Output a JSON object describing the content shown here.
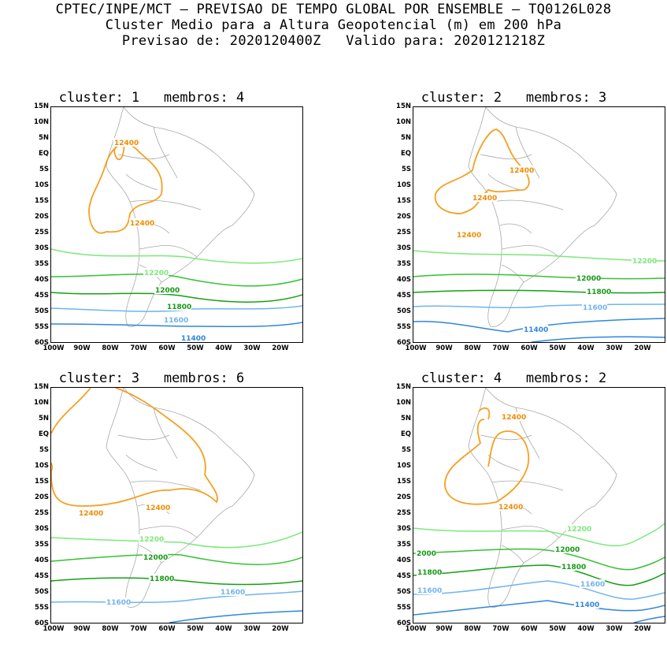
{
  "header": {
    "line1": "CPTEC/INPE/MCT – PREVISAO DE TEMPO GLOBAL POR ENSEMBLE – TQ0126L028",
    "line2": "Cluster Medio para a Altura Geopotencial (m) em 200 hPa",
    "line3": "Previsao de: 2020120400Z   Valido para: 2020121218Z"
  },
  "axes": {
    "y_ticks": [
      "15N",
      "10N",
      "5N",
      "EQ",
      "5S",
      "10S",
      "15S",
      "20S",
      "25S",
      "30S",
      "35S",
      "40S",
      "45S",
      "50S",
      "55S",
      "60S"
    ],
    "x_ticks": [
      "100W",
      "90W",
      "80W",
      "70W",
      "60W",
      "50W",
      "40W",
      "30W",
      "20W"
    ]
  },
  "contour_colors": {
    "12400": "#f5a020",
    "12200": "#7ce87a",
    "12000": "#33c233",
    "11800": "#14a014",
    "11600": "#6fb4ef",
    "11400": "#2f86dc"
  },
  "panels": [
    {
      "title": "cluster: 1   membros: 4",
      "labels": [
        {
          "text": "12400",
          "color": "#f08c00"
        },
        {
          "text": "12400",
          "color": "#f08c00"
        },
        {
          "text": "12200",
          "color": "#7ce87a"
        },
        {
          "text": "12000",
          "color": "#139a13"
        },
        {
          "text": "11800",
          "color": "#139a13"
        },
        {
          "text": "11600",
          "color": "#6fb4ef"
        },
        {
          "text": "11400",
          "color": "#2f86dc"
        }
      ]
    },
    {
      "title": "cluster: 2   membros: 3",
      "labels": [
        {
          "text": "12400",
          "color": "#f08c00"
        },
        {
          "text": "12400",
          "color": "#f08c00"
        },
        {
          "text": "12400",
          "color": "#f08c00"
        },
        {
          "text": "12200",
          "color": "#7ce87a"
        },
        {
          "text": "12000",
          "color": "#139a13"
        },
        {
          "text": "11800",
          "color": "#139a13"
        },
        {
          "text": "11600",
          "color": "#6fb4ef"
        },
        {
          "text": "11400",
          "color": "#2f86dc"
        }
      ]
    },
    {
      "title": "cluster: 3   membros: 6",
      "labels": [
        {
          "text": "12400",
          "color": "#f08c00"
        },
        {
          "text": "12400",
          "color": "#f08c00"
        },
        {
          "text": "12200",
          "color": "#7ce87a"
        },
        {
          "text": "12000",
          "color": "#139a13"
        },
        {
          "text": "11800",
          "color": "#139a13"
        },
        {
          "text": "11600",
          "color": "#6fb4ef"
        },
        {
          "text": "11600",
          "color": "#6fb4ef"
        }
      ]
    },
    {
      "title": "cluster: 4   membros: 2",
      "labels": [
        {
          "text": "12400",
          "color": "#f08c00"
        },
        {
          "text": "12400",
          "color": "#f08c00"
        },
        {
          "text": "12200",
          "color": "#7ce87a"
        },
        {
          "text": "12000",
          "color": "#139a13"
        },
        {
          "text": "2000",
          "color": "#139a13"
        },
        {
          "text": "11800",
          "color": "#139a13"
        },
        {
          "text": "11800",
          "color": "#139a13"
        },
        {
          "text": "11600",
          "color": "#6fb4ef"
        },
        {
          "text": "11600",
          "color": "#6fb4ef"
        },
        {
          "text": "11400",
          "color": "#2f86dc"
        }
      ]
    }
  ]
}
